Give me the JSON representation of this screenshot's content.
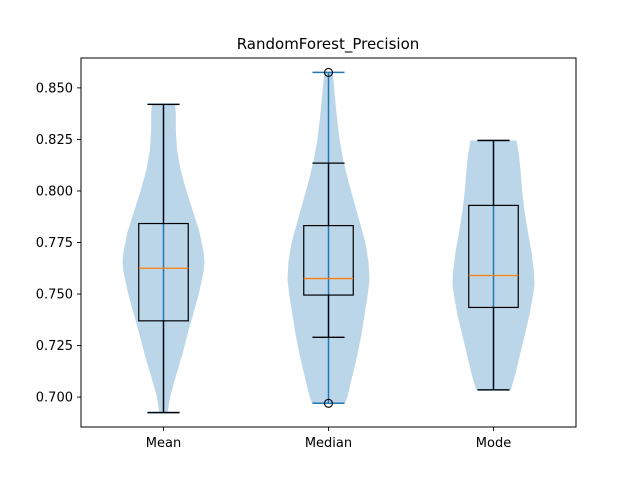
{
  "chart_data": {
    "type": "violin+box",
    "title": "RandomForest_Precision",
    "xlabel": "",
    "ylabel": "",
    "categories": [
      "Mean",
      "Median",
      "Mode"
    ],
    "ylim": [
      0.6855,
      0.8645
    ],
    "yticks": [
      0.7,
      0.725,
      0.75,
      0.775,
      0.8,
      0.825,
      0.85
    ],
    "ytick_labels": [
      "0.700",
      "0.725",
      "0.750",
      "0.775",
      "0.800",
      "0.825",
      "0.850"
    ],
    "grid": false,
    "colors": {
      "violin_fill": "#1f77b4",
      "violin_alpha": 0.3,
      "violin_line": "#1f77b4",
      "box": "#000000",
      "median": "#ff7f0e"
    },
    "series": [
      {
        "name": "Mean",
        "violin": {
          "min": 0.6925,
          "max": 0.842,
          "profile": [
            [
              0.6925,
              0.1
            ],
            [
              0.7,
              0.16
            ],
            [
              0.71,
              0.3
            ],
            [
              0.72,
              0.45
            ],
            [
              0.73,
              0.58
            ],
            [
              0.74,
              0.72
            ],
            [
              0.75,
              0.86
            ],
            [
              0.76,
              0.97
            ],
            [
              0.765,
              1.0
            ],
            [
              0.77,
              0.98
            ],
            [
              0.78,
              0.88
            ],
            [
              0.79,
              0.72
            ],
            [
              0.8,
              0.56
            ],
            [
              0.81,
              0.42
            ],
            [
              0.82,
              0.33
            ],
            [
              0.83,
              0.3
            ],
            [
              0.838,
              0.3
            ],
            [
              0.842,
              0.28
            ]
          ]
        },
        "box": {
          "whisker_low": 0.6925,
          "q1": 0.737,
          "median": 0.7625,
          "q3": 0.7842,
          "whisker_high": 0.842,
          "outliers": []
        }
      },
      {
        "name": "Median",
        "violin": {
          "min": 0.697,
          "max": 0.8575,
          "profile": [
            [
              0.697,
              0.4
            ],
            [
              0.7,
              0.46
            ],
            [
              0.71,
              0.58
            ],
            [
              0.72,
              0.7
            ],
            [
              0.73,
              0.8
            ],
            [
              0.74,
              0.88
            ],
            [
              0.75,
              0.96
            ],
            [
              0.757,
              1.0
            ],
            [
              0.765,
              0.98
            ],
            [
              0.775,
              0.9
            ],
            [
              0.785,
              0.76
            ],
            [
              0.795,
              0.62
            ],
            [
              0.805,
              0.48
            ],
            [
              0.815,
              0.36
            ],
            [
              0.825,
              0.27
            ],
            [
              0.835,
              0.21
            ],
            [
              0.845,
              0.16
            ],
            [
              0.852,
              0.13
            ],
            [
              0.8575,
              0.1
            ]
          ]
        },
        "box": {
          "whisker_low": 0.729,
          "q1": 0.7495,
          "median": 0.7575,
          "q3": 0.7832,
          "whisker_high": 0.8135,
          "outliers": [
            0.8575,
            0.697
          ]
        }
      },
      {
        "name": "Mode",
        "violin": {
          "min": 0.7035,
          "max": 0.8245,
          "profile": [
            [
              0.7035,
              0.42
            ],
            [
              0.71,
              0.52
            ],
            [
              0.72,
              0.64
            ],
            [
              0.73,
              0.76
            ],
            [
              0.74,
              0.88
            ],
            [
              0.75,
              0.97
            ],
            [
              0.755,
              1.0
            ],
            [
              0.76,
              0.99
            ],
            [
              0.77,
              0.93
            ],
            [
              0.78,
              0.84
            ],
            [
              0.79,
              0.76
            ],
            [
              0.8,
              0.7
            ],
            [
              0.81,
              0.66
            ],
            [
              0.818,
              0.62
            ],
            [
              0.8245,
              0.56
            ]
          ]
        },
        "box": {
          "whisker_low": 0.7035,
          "q1": 0.7435,
          "median": 0.759,
          "q3": 0.793,
          "whisker_high": 0.8245,
          "outliers": []
        }
      }
    ]
  }
}
